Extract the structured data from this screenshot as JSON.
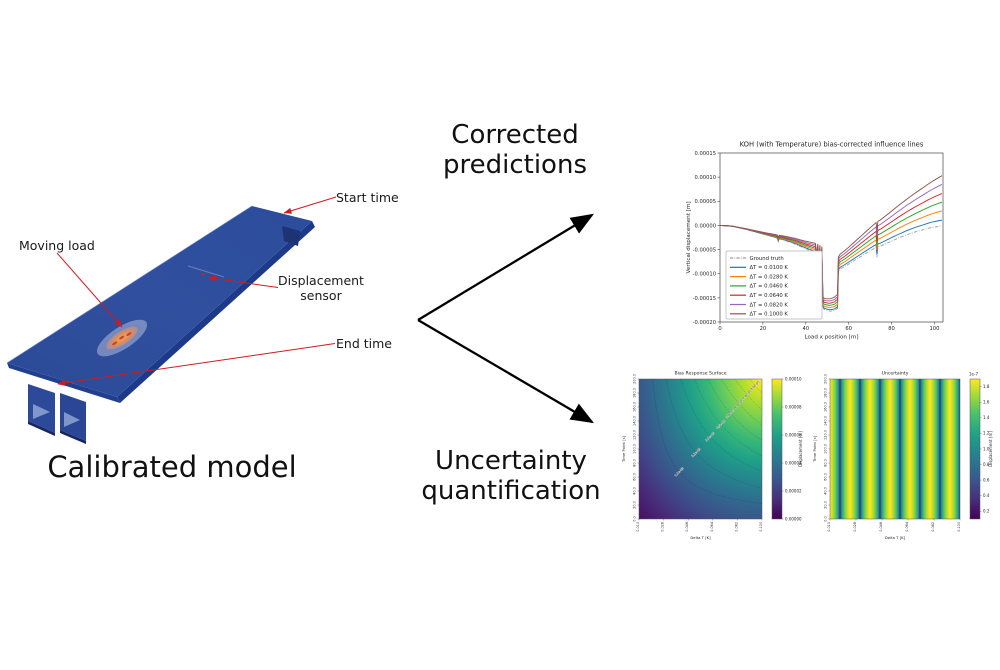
{
  "left_panel": {
    "caption": "Calibrated model",
    "annotations": {
      "start_time": "Start time",
      "moving_load": "Moving load",
      "displacement_sensor": "Displacement\nsensor",
      "end_time": "End time"
    },
    "annotation_color": "#d11a1f",
    "model_color": "#2e4d9e"
  },
  "center": {
    "top_label": "Corrected\npredictions",
    "bottom_label": "Uncertainty\nquantification",
    "arrow_color": "#000000"
  },
  "chart_data": [
    {
      "type": "line",
      "title": "KOH (with Temperature) bias-corrected influence lines",
      "xlabel": "Load x position [m]",
      "ylabel": "Vertical displacement [m]",
      "xlim": [
        0,
        104
      ],
      "ylim": [
        -0.0002,
        0.00015
      ],
      "xticks": [
        0,
        20,
        40,
        60,
        80,
        100
      ],
      "ytick_vals": [
        0.00015,
        0.0001,
        5e-05,
        0,
        -5e-05,
        -0.0001,
        -0.00015,
        -0.0002
      ],
      "ytick_labels": [
        "0.00015",
        "0.00010",
        "0.00005",
        "0.00000",
        "-0.00005",
        "-0.00010",
        "-0.00015",
        "-0.00020"
      ],
      "legend_position": "lower left",
      "y_scale": 1e-05,
      "amp_x_ref": 103.5,
      "amp_exponent": 2,
      "ground_truth": {
        "name": "Ground truth",
        "color": "#a0a0a0",
        "style": "dash-dot",
        "x": [
          0,
          2,
          4,
          6,
          8,
          10,
          12,
          14,
          16,
          18,
          20,
          22,
          24,
          26,
          26.8,
          27.2,
          27.6,
          29,
          31,
          33,
          35,
          37,
          39,
          41,
          43,
          44.5,
          45.2,
          45.6,
          46.2,
          46.6,
          47.1,
          47.5,
          48,
          48.6,
          49.5,
          50.5,
          51.5,
          52.5,
          53.5,
          54.4,
          54.8,
          55.2,
          56,
          58,
          60,
          62,
          64,
          66,
          68,
          70,
          72,
          72.8,
          73.2,
          73.6,
          75,
          77,
          79,
          81,
          83,
          85,
          87,
          89,
          91,
          93,
          95,
          97,
          99,
          101,
          103.5
        ],
        "y": [
          0,
          -0.05,
          -0.1,
          -0.2,
          -0.4,
          -0.6,
          -0.8,
          -1.05,
          -1.3,
          -1.55,
          -1.8,
          -2.05,
          -2.3,
          -2.55,
          -2.7,
          -3.35,
          -2.8,
          -2.95,
          -3.25,
          -3.55,
          -3.85,
          -4.25,
          -4.65,
          -5,
          -5.35,
          -5.65,
          -8,
          -5.85,
          -9.75,
          -6.2,
          -10.5,
          -6.55,
          -17,
          -17.4,
          -17.55,
          -17.7,
          -17.75,
          -17.7,
          -17.6,
          -17.3,
          -17.25,
          -9.5,
          -9,
          -8.55,
          -8,
          -7.45,
          -6.9,
          -6.35,
          -5.8,
          -5.25,
          -4.75,
          -4.55,
          -6.6,
          -4.45,
          -4.25,
          -3.85,
          -3.45,
          -3.05,
          -2.65,
          -2.3,
          -1.95,
          -1.65,
          -1.35,
          -1.1,
          -0.85,
          -0.6,
          -0.4,
          -0.25,
          -0.1
        ]
      },
      "series": [
        {
          "name": "ΔT = 0.0100 K",
          "color": "#1f77b4",
          "amp": 1.2
        },
        {
          "name": "ΔT = 0.0280 K",
          "color": "#ff7f0e",
          "amp": 3.1
        },
        {
          "name": "ΔT = 0.0460 K",
          "color": "#2ca02c",
          "amp": 4.9
        },
        {
          "name": "ΔT = 0.0640 K",
          "color": "#d62728",
          "amp": 6.7
        },
        {
          "name": "ΔT = 0.0820 K",
          "color": "#9467bd",
          "amp": 8.6
        },
        {
          "name": "ΔT = 0.1000 K",
          "color": "#8c564b",
          "amp": 10.4
        }
      ]
    },
    {
      "type": "heatmap",
      "title": "Bias Response Surface",
      "xlabel": "Delta T [K]",
      "ylabel": "Time Point [s]",
      "xtick_labels": [
        "0.010",
        "0.028",
        "0.046",
        "0.064",
        "0.082",
        "0.100"
      ],
      "xmin": 0.01,
      "xmax": 0.1,
      "ytick_labels": [
        "0.0",
        "20.0",
        "40.0",
        "60.0",
        "80.0",
        "100.0",
        "120.0",
        "140.0",
        "160.0",
        "180.0",
        "200.0"
      ],
      "ymin": 0,
      "ymax": 200,
      "colormap": "viridis",
      "value_model": "bias grows with Delta T x time, yellow max at top-right",
      "contours": [
        {
          "f": 0.11,
          "label": "1.1e-05"
        },
        {
          "f": 0.22,
          "label": "2.2e-05"
        },
        {
          "f": 0.34,
          "label": "3.4e-05"
        },
        {
          "f": 0.45,
          "label": "4.5e-05"
        },
        {
          "f": 0.56,
          "label": "5.6e-05"
        },
        {
          "f": 0.67,
          "label": "6.7e-05"
        },
        {
          "f": 0.78,
          "label": "7.8e-05"
        },
        {
          "f": 0.9,
          "label": "9.0e-05"
        }
      ],
      "colorbar": {
        "label": "Displacement [m]",
        "ticks": [
          {
            "f": 0,
            "label": "0.00000"
          },
          {
            "f": 0.2,
            "label": "0.00002"
          },
          {
            "f": 0.4,
            "label": "0.00004"
          },
          {
            "f": 0.6,
            "label": "0.00006"
          },
          {
            "f": 0.8,
            "label": "0.00008"
          },
          {
            "f": 1,
            "label": "0.00010"
          }
        ]
      }
    },
    {
      "type": "heatmap",
      "title": "Uncertainty",
      "xlabel": "Delta T [K]",
      "ylabel": "Time Point [s]",
      "xtick_labels": [
        "0.010",
        "0.028",
        "0.046",
        "0.064",
        "0.082",
        "0.100"
      ],
      "xmin": 0.01,
      "xmax": 0.1,
      "ytick_labels": [
        "0.0",
        "20.0",
        "40.0",
        "60.0",
        "80.0",
        "100.0",
        "120.0",
        "140.0",
        "160.0",
        "180.0",
        "200.0"
      ],
      "ymin": 0,
      "ymax": 200,
      "colormap": "viridis",
      "pattern": "vertical stripes, 6 dark bands, value varies with Delta T only",
      "stripe_period_fraction": 0.1538,
      "colorbar": {
        "label": "Displacement [m]",
        "scale": "1e-7",
        "vmin": 0.1,
        "vmax": 1.9,
        "tick_values": [
          0.2,
          0.4,
          0.6,
          0.8,
          1.0,
          1.2,
          1.4,
          1.6,
          1.8
        ]
      }
    }
  ]
}
